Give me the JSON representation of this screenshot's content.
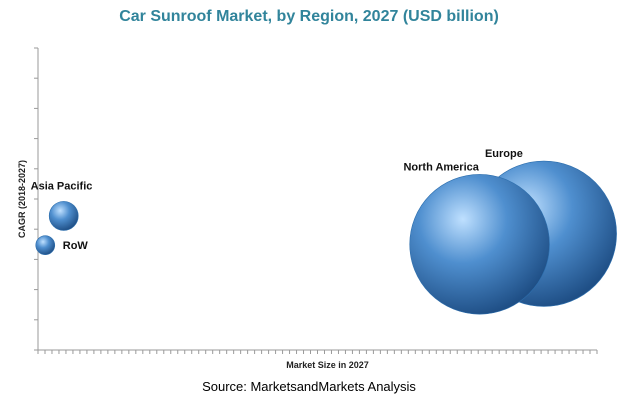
{
  "chart_data": {
    "type": "scatter",
    "subtype": "bubble",
    "title": "Car Sunroof Market, by Region, 2027 (USD billion)",
    "xlabel": "Market Size in 2027",
    "ylabel": "CAGR (2018-2027)",
    "xlim": [
      0,
      100
    ],
    "ylim": [
      0,
      100
    ],
    "x_tick_labels_shown": false,
    "y_tick_labels_shown": false,
    "grid": false,
    "legend": "none",
    "bubble_color": "#4f8fcf",
    "bubble_highlight": "#bfe0ff",
    "bubble_shadow": "#1f4f86",
    "points": [
      {
        "label": "Asia Pacific",
        "x": 4.6,
        "y": 44.4,
        "size": 2.6,
        "label_position": "top-left"
      },
      {
        "label": "RoW",
        "x": 1.3,
        "y": 34.7,
        "size": 1.7,
        "label_position": "right"
      },
      {
        "label": "North America",
        "x": 79.0,
        "y": 35.0,
        "size": 12.5,
        "label_position": "top-left"
      },
      {
        "label": "Europe",
        "x": 90.5,
        "y": 38.5,
        "size": 13.0,
        "label_position": "top-left"
      }
    ]
  },
  "source": "Source: MarketsandMarkets Analysis"
}
